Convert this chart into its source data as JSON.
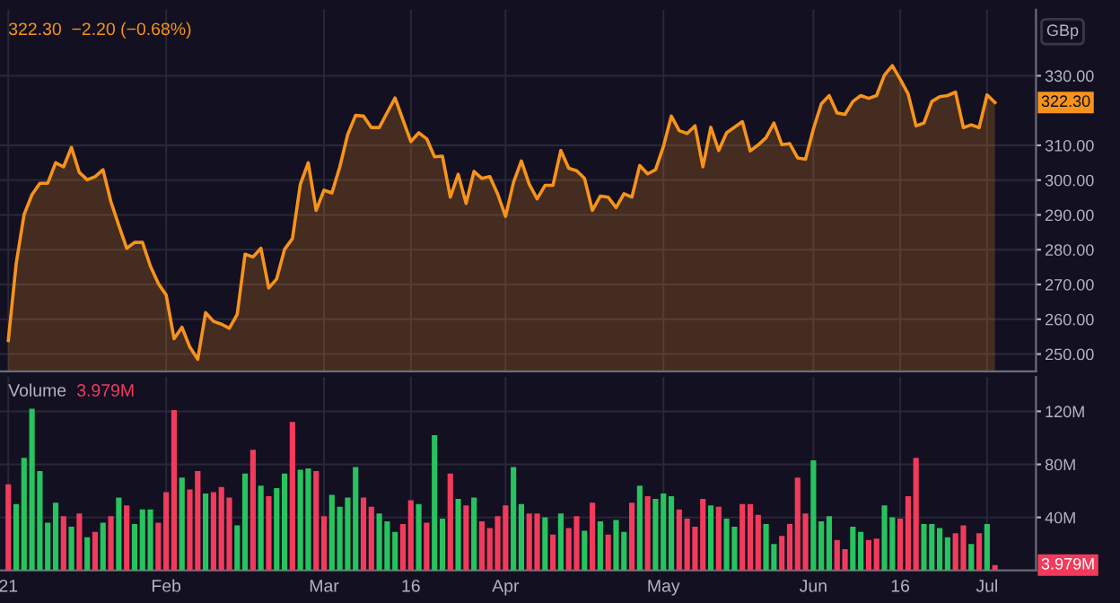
{
  "chart_data": [
    {
      "type": "area",
      "title": "322.30  −2.20 (−0.68%)",
      "categories": [
        null,
        null,
        null,
        null,
        null,
        null,
        null,
        null,
        null,
        null,
        null,
        null,
        null,
        null,
        null,
        null,
        null,
        null,
        null,
        null,
        null,
        null,
        null,
        null,
        null,
        null,
        null,
        null,
        null,
        null,
        null,
        null,
        null,
        null,
        null,
        null,
        null,
        null,
        null,
        null,
        null,
        null,
        null,
        null,
        null,
        null,
        null,
        null,
        null,
        null,
        null,
        null,
        null,
        null,
        null,
        null,
        null,
        null,
        null,
        null,
        null,
        null,
        null,
        null,
        null,
        null,
        null,
        null,
        null,
        null,
        null,
        null,
        null,
        null,
        null,
        null,
        null,
        null,
        null,
        null,
        null,
        null,
        null,
        null,
        null,
        null,
        null,
        null,
        null,
        null,
        null,
        null,
        null,
        null,
        null,
        null,
        null,
        null,
        null,
        null,
        null,
        null,
        null,
        null,
        null,
        null,
        null,
        null,
        null,
        null,
        null,
        null,
        null,
        null,
        null,
        null,
        null,
        null,
        null,
        null,
        null,
        null,
        null,
        null,
        null,
        null
      ],
      "series": [
        {
          "color": "#f7931a",
          "values": [
            253.9,
            276,
            290.1,
            295.8,
            299.1,
            299.1,
            305.0,
            303.8,
            309.4,
            302.2,
            300.1,
            301.0,
            303.0,
            293.8,
            287.0,
            280.4,
            282.1,
            282.1,
            275.3,
            270.3,
            267.0,
            254.4,
            257.7,
            252,
            248.5,
            261.9,
            259.4,
            258.6,
            257.4,
            261.4,
            278.7,
            277.9,
            280.4,
            269.0,
            271.6,
            280.1,
            283.2,
            298.8,
            305.0,
            291.3,
            297.1,
            296.3,
            303.8,
            313.1,
            318.6,
            318.4,
            315.1,
            315.1,
            319.4,
            323.6,
            317.3,
            311.1,
            313.6,
            311.9,
            306.7,
            306.9,
            295.1,
            301.7,
            293.3,
            302.5,
            300.5,
            301.0,
            296,
            289.6,
            299.3,
            305.5,
            298.8,
            294.6,
            298.5,
            298.5,
            308.5,
            303.4,
            302.7,
            300.5,
            291.3,
            295.4,
            295.1,
            292.1,
            296.1,
            295.1,
            304.2,
            301.8,
            303.0,
            309.7,
            318.4,
            314.2,
            313.4,
            315.6,
            303.8,
            315.2,
            308.5,
            313.6,
            315.2,
            316.8,
            308.4,
            310.1,
            312.2,
            316.4,
            310.2,
            310.5,
            306.4,
            306.0,
            314.7,
            321.9,
            324.3,
            319.3,
            318.9,
            322.6,
            324.3,
            323.5,
            324.3,
            330.2,
            332.9,
            329.0,
            324.8,
            315.6,
            316.4,
            322.6,
            324.0,
            324.3,
            325.3,
            315.1,
            315.9,
            315.1,
            324.5,
            322.3
          ]
        }
      ],
      "ylim": [
        245,
        349
      ],
      "yticks": [
        {
          "value": 250,
          "label": "250.00"
        },
        {
          "value": 260,
          "label": "260.00"
        },
        {
          "value": 270,
          "label": "270.00"
        },
        {
          "value": 280,
          "label": "280.00"
        },
        {
          "value": 290,
          "label": "290.00"
        },
        {
          "value": 300,
          "label": "300.00"
        },
        {
          "value": 310,
          "label": "310.00"
        },
        {
          "value": 330,
          "label": "330.00"
        }
      ],
      "grid": true,
      "tick_labels": "y",
      "annotations": [
        "GBp",
        "322.30"
      ]
    },
    {
      "type": "bar",
      "title": "Volume",
      "subtitle": "3.979M",
      "categories": [
        "21",
        null,
        null,
        null,
        null,
        null,
        null,
        null,
        null,
        null,
        null,
        null,
        null,
        null,
        null,
        null,
        null,
        null,
        null,
        null,
        "Feb",
        null,
        null,
        null,
        null,
        null,
        null,
        null,
        null,
        null,
        null,
        null,
        null,
        null,
        null,
        null,
        null,
        null,
        null,
        null,
        "Mar",
        null,
        null,
        null,
        null,
        null,
        null,
        null,
        null,
        null,
        null,
        "16",
        null,
        null,
        null,
        null,
        null,
        null,
        null,
        null,
        null,
        null,
        null,
        "Apr",
        null,
        null,
        null,
        null,
        null,
        null,
        null,
        null,
        null,
        null,
        null,
        null,
        null,
        null,
        null,
        null,
        null,
        null,
        null,
        "May",
        null,
        null,
        null,
        null,
        null,
        null,
        null,
        null,
        null,
        null,
        null,
        null,
        null,
        null,
        null,
        null,
        null,
        null,
        "Jun",
        null,
        null,
        null,
        null,
        null,
        null,
        null,
        null,
        null,
        null,
        "16",
        null,
        null,
        null,
        null,
        null,
        null,
        null,
        null,
        null,
        null,
        "Jul",
        null
      ],
      "values": [
        65,
        50,
        85,
        122,
        75,
        36,
        51,
        41,
        33,
        43,
        25,
        29,
        36,
        41,
        55,
        49,
        35,
        46,
        46,
        36,
        59,
        121,
        70,
        61,
        75,
        58,
        59,
        63,
        55,
        34,
        73,
        91,
        64,
        56,
        62,
        73,
        112,
        76,
        77,
        75,
        41,
        57,
        48,
        55,
        78,
        55,
        48,
        43,
        37,
        29,
        35,
        53,
        50,
        36,
        102,
        39,
        73,
        54,
        49,
        55,
        37,
        32,
        41,
        49,
        78,
        50,
        43,
        43,
        40,
        27,
        43,
        32,
        41,
        30,
        51,
        37,
        27,
        38,
        29,
        51,
        64,
        56,
        54,
        58,
        56,
        46,
        39,
        33,
        54,
        49,
        48,
        39,
        33,
        50,
        50,
        42,
        35,
        20,
        26,
        35,
        70,
        43,
        83,
        37,
        41,
        23,
        16,
        33,
        29,
        23,
        24,
        49,
        40,
        39,
        56,
        85,
        35,
        35,
        32,
        25,
        28,
        34,
        20,
        28,
        35,
        3.979
      ],
      "colors": [
        "#f23b5c",
        "#27c35f",
        "#27c35f",
        "#27c35f",
        "#27c35f",
        "#27c35f",
        "#27c35f",
        "#f23b5c",
        "#27c35f",
        "#f23b5c",
        "#27c35f",
        "#f23b5c",
        "#27c35f",
        "#f23b5c",
        "#27c35f",
        "#f23b5c",
        "#27c35f",
        "#27c35f",
        "#27c35f",
        "#f23b5c",
        "#f23b5c",
        "#f23b5c",
        "#27c35f",
        "#f23b5c",
        "#f23b5c",
        "#27c35f",
        "#f23b5c",
        "#f23b5c",
        "#f23b5c",
        "#27c35f",
        "#27c35f",
        "#f23b5c",
        "#27c35f",
        "#f23b5c",
        "#27c35f",
        "#27c35f",
        "#f23b5c",
        "#27c35f",
        "#27c35f",
        "#f23b5c",
        "#f23b5c",
        "#27c35f",
        "#27c35f",
        "#27c35f",
        "#27c35f",
        "#f23b5c",
        "#f23b5c",
        "#27c35f",
        "#27c35f",
        "#27c35f",
        "#f23b5c",
        "#f23b5c",
        "#27c35f",
        "#f23b5c",
        "#27c35f",
        "#27c35f",
        "#f23b5c",
        "#27c35f",
        "#f23b5c",
        "#27c35f",
        "#f23b5c",
        "#f23b5c",
        "#f23b5c",
        "#f23b5c",
        "#27c35f",
        "#27c35f",
        "#f23b5c",
        "#f23b5c",
        "#27c35f",
        "#f23b5c",
        "#27c35f",
        "#f23b5c",
        "#f23b5c",
        "#27c35f",
        "#f23b5c",
        "#27c35f",
        "#f23b5c",
        "#27c35f",
        "#27c35f",
        "#f23b5c",
        "#27c35f",
        "#f23b5c",
        "#27c35f",
        "#27c35f",
        "#27c35f",
        "#f23b5c",
        "#f23b5c",
        "#f23b5c",
        "#f23b5c",
        "#27c35f",
        "#f23b5c",
        "#27c35f",
        "#27c35f",
        "#f23b5c",
        "#f23b5c",
        "#f23b5c",
        "#27c35f",
        "#27c35f",
        "#f23b5c",
        "#f23b5c",
        "#f23b5c",
        "#f23b5c",
        "#27c35f",
        "#27c35f",
        "#27c35f",
        "#f23b5c",
        "#f23b5c",
        "#27c35f",
        "#27c35f",
        "#f23b5c",
        "#f23b5c",
        "#27c35f",
        "#27c35f",
        "#f23b5c",
        "#f23b5c",
        "#f23b5c",
        "#27c35f",
        "#27c35f",
        "#27c35f",
        "#27c35f",
        "#f23b5c",
        "#f23b5c",
        "#27c35f",
        "#f23b5c",
        "#27c35f",
        "#f23b5c"
      ],
      "ylim": [
        0,
        146
      ],
      "yticks": [
        {
          "value": 40,
          "label": "40M"
        },
        {
          "value": 80,
          "label": "80M"
        },
        {
          "value": 120,
          "label": "120M"
        }
      ],
      "grid": true,
      "annotations": [
        "3.979M"
      ]
    }
  ]
}
